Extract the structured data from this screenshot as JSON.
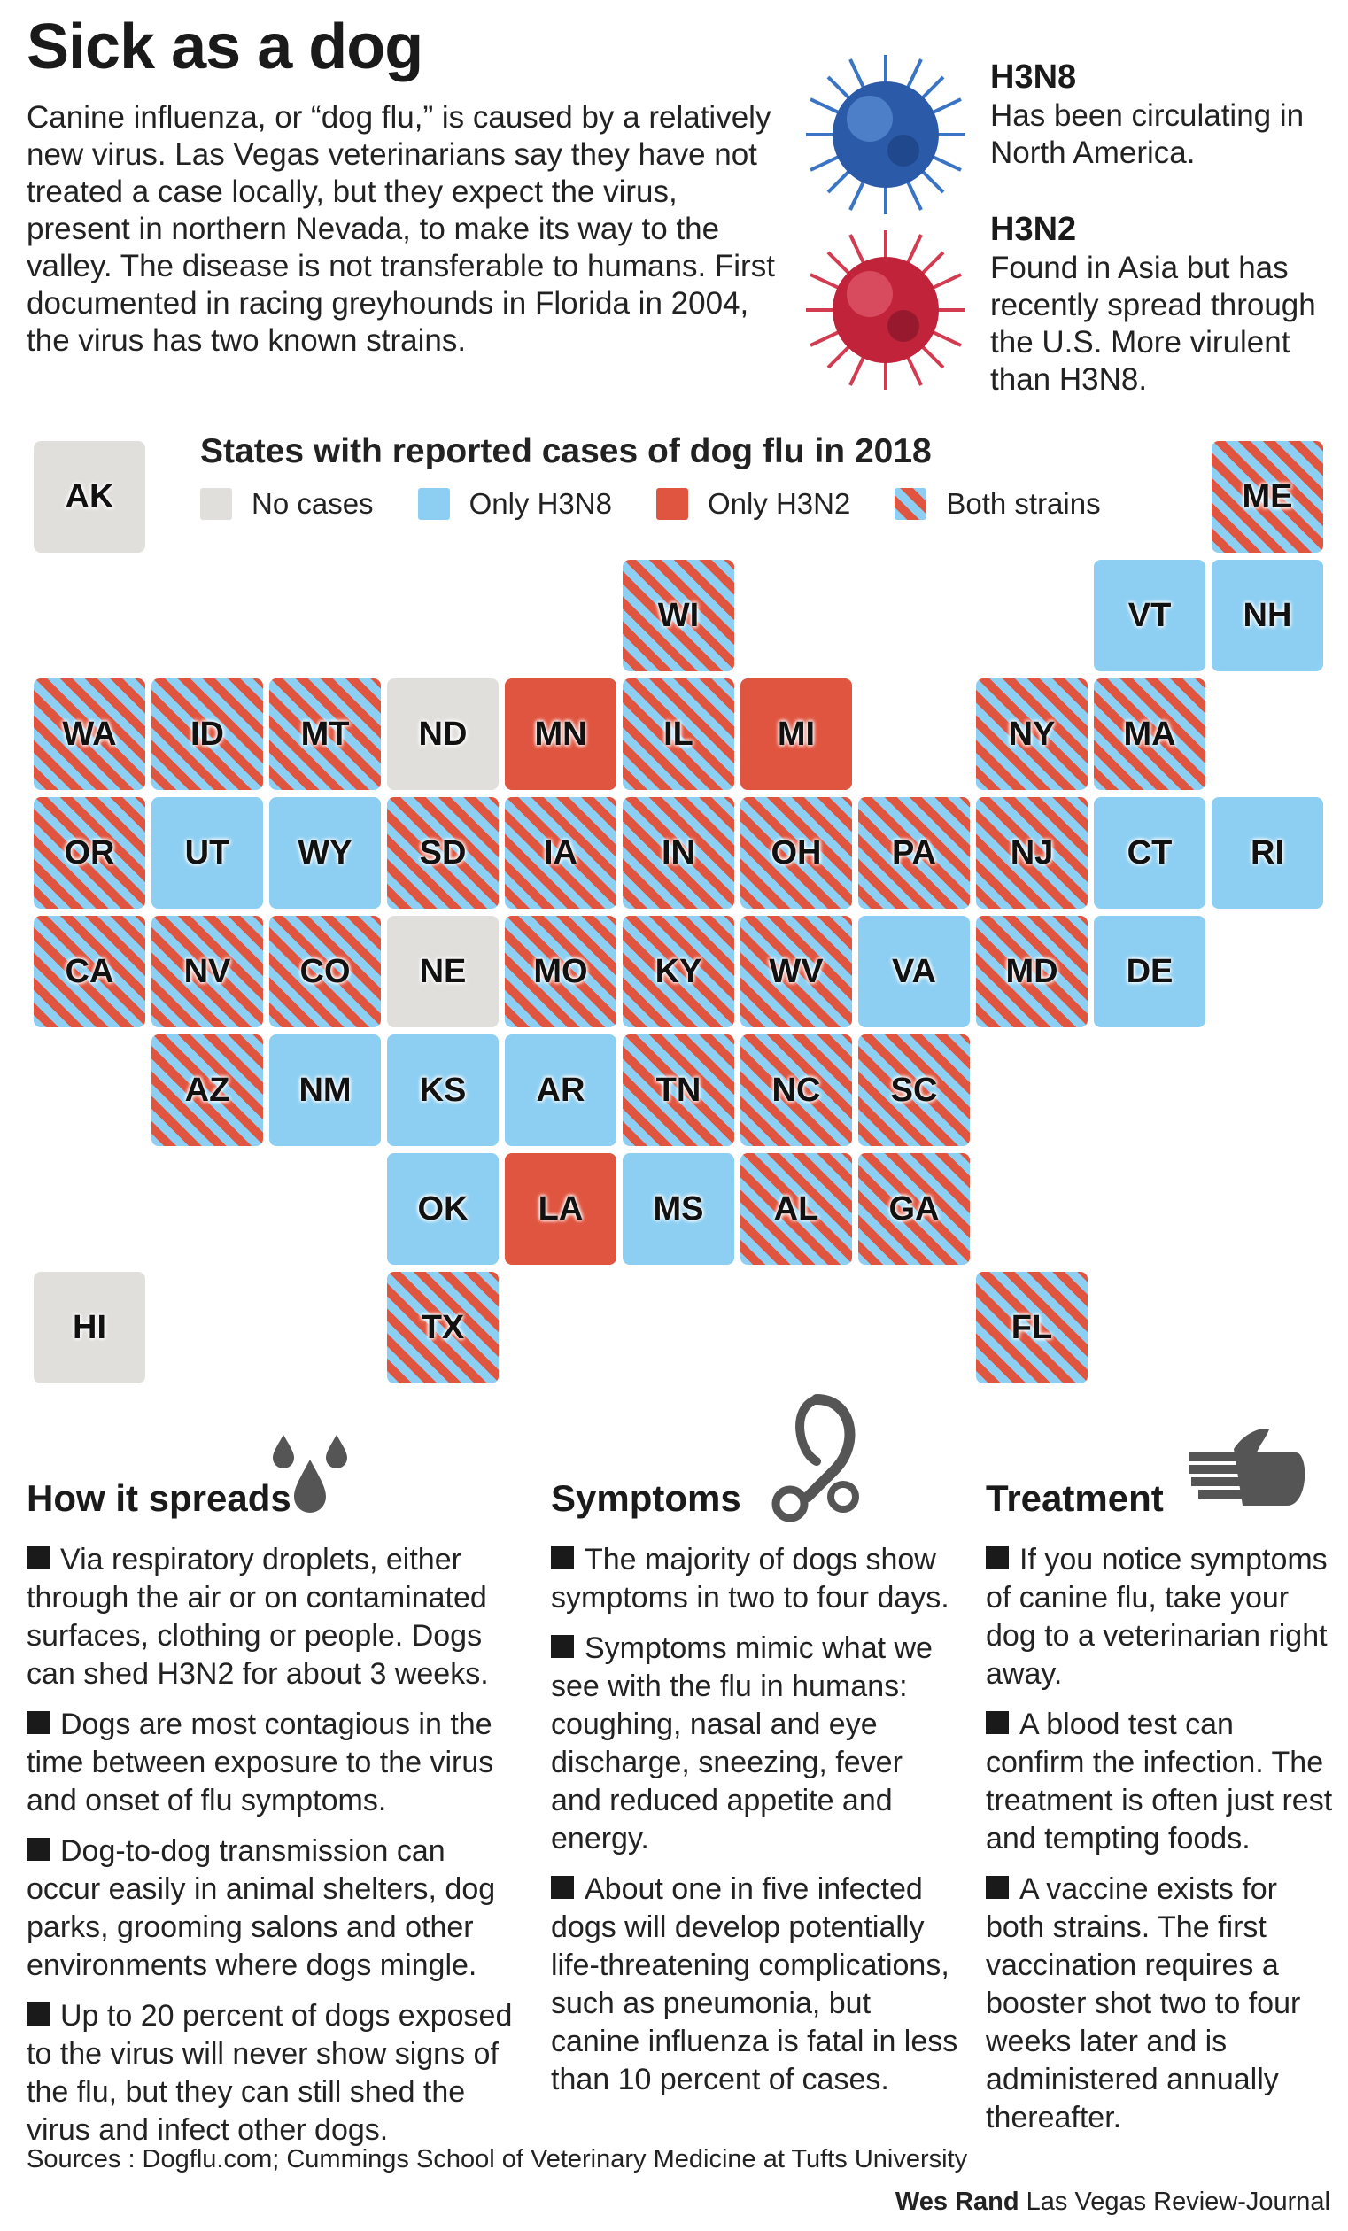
{
  "title": "Sick as a dog",
  "intro": "Canine influenza, or “dog flu,” is caused by a relatively new virus. Las Vegas veterinarians say they have not treated a case locally, but they expect the virus, present in northern Nevada, to make its way to the valley. The disease is not transferable to humans. First documented in racing greyhounds in Florida in 2004, the virus has two known strains.",
  "strains": [
    {
      "name": "H3N8",
      "description": "Has been circulating in North America.",
      "color": "#2b5aa8"
    },
    {
      "name": "H3N2",
      "description": "Found in Asia but has recently spread through the U.S. More virulent than H3N8.",
      "color": "#c0233a"
    }
  ],
  "map": {
    "title": "States with reported cases of dog flu in 2018",
    "legend": [
      {
        "key": "none",
        "label": "No cases",
        "color": "#e1dfdc"
      },
      {
        "key": "h3n8",
        "label": "Only H3N8",
        "color": "#8dcff2"
      },
      {
        "key": "h3n2",
        "label": "Only H3N2",
        "color": "#e05540"
      },
      {
        "key": "both",
        "label": "Both strains",
        "color": "striped"
      }
    ],
    "states": [
      {
        "abbr": "AK",
        "status": "none",
        "col": 0,
        "row": 0
      },
      {
        "abbr": "ME",
        "status": "both",
        "col": 10,
        "row": 0
      },
      {
        "abbr": "WI",
        "status": "both",
        "col": 5,
        "row": 1
      },
      {
        "abbr": "VT",
        "status": "h3n8",
        "col": 9,
        "row": 1
      },
      {
        "abbr": "NH",
        "status": "h3n8",
        "col": 10,
        "row": 1
      },
      {
        "abbr": "WA",
        "status": "both",
        "col": 0,
        "row": 2
      },
      {
        "abbr": "ID",
        "status": "both",
        "col": 1,
        "row": 2
      },
      {
        "abbr": "MT",
        "status": "both",
        "col": 2,
        "row": 2
      },
      {
        "abbr": "ND",
        "status": "none",
        "col": 3,
        "row": 2
      },
      {
        "abbr": "MN",
        "status": "h3n2",
        "col": 4,
        "row": 2
      },
      {
        "abbr": "IL",
        "status": "both",
        "col": 5,
        "row": 2
      },
      {
        "abbr": "MI",
        "status": "h3n2",
        "col": 6,
        "row": 2
      },
      {
        "abbr": "NY",
        "status": "both",
        "col": 8,
        "row": 2
      },
      {
        "abbr": "MA",
        "status": "both",
        "col": 9,
        "row": 2
      },
      {
        "abbr": "OR",
        "status": "both",
        "col": 0,
        "row": 3
      },
      {
        "abbr": "UT",
        "status": "h3n8",
        "col": 1,
        "row": 3
      },
      {
        "abbr": "WY",
        "status": "h3n8",
        "col": 2,
        "row": 3
      },
      {
        "abbr": "SD",
        "status": "both",
        "col": 3,
        "row": 3
      },
      {
        "abbr": "IA",
        "status": "both",
        "col": 4,
        "row": 3
      },
      {
        "abbr": "IN",
        "status": "both",
        "col": 5,
        "row": 3
      },
      {
        "abbr": "OH",
        "status": "both",
        "col": 6,
        "row": 3
      },
      {
        "abbr": "PA",
        "status": "both",
        "col": 7,
        "row": 3
      },
      {
        "abbr": "NJ",
        "status": "both",
        "col": 8,
        "row": 3
      },
      {
        "abbr": "CT",
        "status": "h3n8",
        "col": 9,
        "row": 3
      },
      {
        "abbr": "RI",
        "status": "h3n8",
        "col": 10,
        "row": 3
      },
      {
        "abbr": "CA",
        "status": "both",
        "col": 0,
        "row": 4
      },
      {
        "abbr": "NV",
        "status": "both",
        "col": 1,
        "row": 4
      },
      {
        "abbr": "CO",
        "status": "both",
        "col": 2,
        "row": 4
      },
      {
        "abbr": "NE",
        "status": "none",
        "col": 3,
        "row": 4
      },
      {
        "abbr": "MO",
        "status": "both",
        "col": 4,
        "row": 4
      },
      {
        "abbr": "KY",
        "status": "both",
        "col": 5,
        "row": 4
      },
      {
        "abbr": "WV",
        "status": "both",
        "col": 6,
        "row": 4
      },
      {
        "abbr": "VA",
        "status": "h3n8",
        "col": 7,
        "row": 4
      },
      {
        "abbr": "MD",
        "status": "both",
        "col": 8,
        "row": 4
      },
      {
        "abbr": "DE",
        "status": "h3n8",
        "col": 9,
        "row": 4
      },
      {
        "abbr": "AZ",
        "status": "both",
        "col": 1,
        "row": 5
      },
      {
        "abbr": "NM",
        "status": "h3n8",
        "col": 2,
        "row": 5
      },
      {
        "abbr": "KS",
        "status": "h3n8",
        "col": 3,
        "row": 5
      },
      {
        "abbr": "AR",
        "status": "h3n8",
        "col": 4,
        "row": 5
      },
      {
        "abbr": "TN",
        "status": "both",
        "col": 5,
        "row": 5
      },
      {
        "abbr": "NC",
        "status": "both",
        "col": 6,
        "row": 5
      },
      {
        "abbr": "SC",
        "status": "both",
        "col": 7,
        "row": 5
      },
      {
        "abbr": "OK",
        "status": "h3n8",
        "col": 3,
        "row": 6
      },
      {
        "abbr": "LA",
        "status": "h3n2",
        "col": 4,
        "row": 6
      },
      {
        "abbr": "MS",
        "status": "h3n8",
        "col": 5,
        "row": 6
      },
      {
        "abbr": "AL",
        "status": "both",
        "col": 6,
        "row": 6
      },
      {
        "abbr": "GA",
        "status": "both",
        "col": 7,
        "row": 6
      },
      {
        "abbr": "HI",
        "status": "none",
        "col": 0,
        "row": 7
      },
      {
        "abbr": "TX",
        "status": "both",
        "col": 3,
        "row": 7
      },
      {
        "abbr": "FL",
        "status": "both",
        "col": 8,
        "row": 7
      }
    ]
  },
  "sections": [
    {
      "heading": "How it spreads",
      "icon": "droplets-icon",
      "bullets": [
        "Via respiratory droplets, either through the air or on contaminated surfaces, clothing or people. Dogs can shed H3N2 for about 3 weeks.",
        "Dogs are most contagious in the time between exposure to the virus and onset of flu symptoms.",
        "Dog-to-dog transmission can occur easily in animal shelters, dog parks, grooming salons and other environments where dogs mingle.",
        "Up to 20 percent of dogs exposed to the virus will never show signs of the flu, but they can still shed the virus and infect other dogs."
      ]
    },
    {
      "heading": "Symptoms",
      "icon": "stethoscope-icon",
      "bullets": [
        "The majority of dogs show symptoms in two to four days.",
        "Symptoms mimic what we see with the flu in humans: coughing, nasal and eye discharge, sneezing, fever and reduced appetite and energy.",
        "About one in five infected dogs will develop potentially life-threatening complications, such as pneumonia, but canine influenza is fatal in less than 10 percent of cases."
      ]
    },
    {
      "heading": "Treatment",
      "icon": "hand-icon",
      "bullets": [
        "If you notice symptoms of canine flu, take your dog to a veterinarian right away.",
        "A blood test can confirm the infection. The treatment is often just rest and tempting foods.",
        "A vaccine exists for both strains. The first vaccination requires a booster shot two to four weeks later and is administered annually thereafter."
      ]
    }
  ],
  "sources": "Sources : Dogflu.com; Cummings School of Veterinary Medicine at Tufts University",
  "credit": {
    "author": "Wes Rand",
    "outlet": "Las Vegas Review-Journal"
  }
}
